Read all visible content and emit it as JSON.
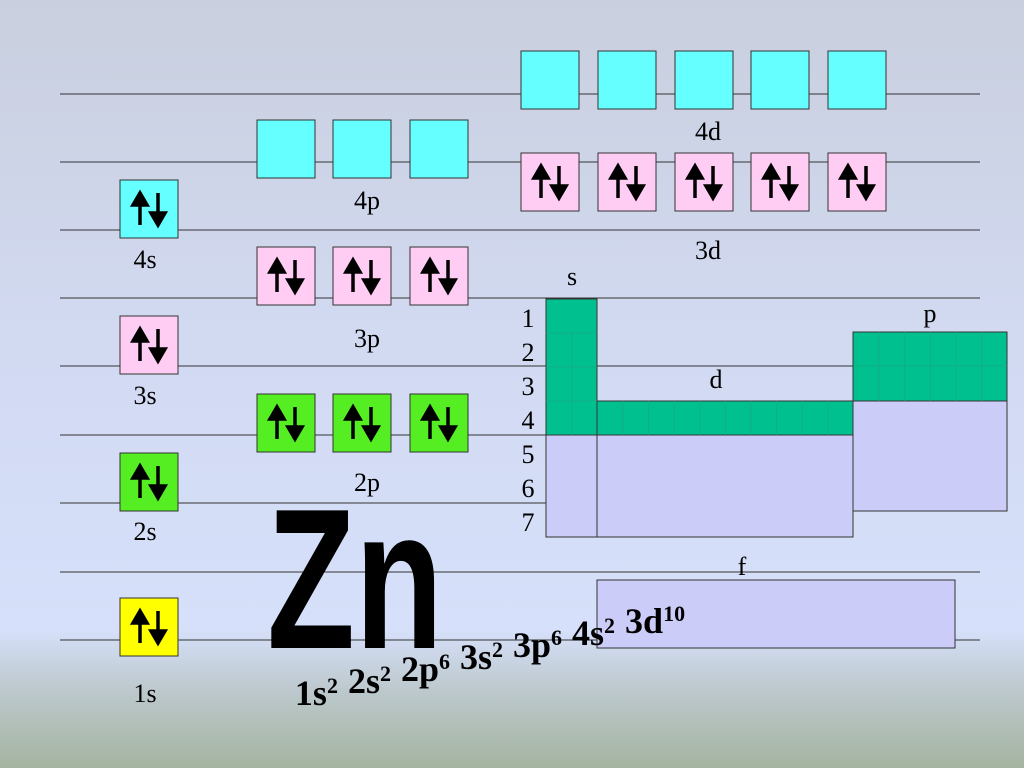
{
  "orbitals": [
    {
      "label": "1s"
    },
    {
      "label": "2s"
    },
    {
      "label": "2p"
    },
    {
      "label": "3s"
    },
    {
      "label": "3p"
    },
    {
      "label": "4s"
    },
    {
      "label": "3d"
    },
    {
      "label": "4p"
    },
    {
      "label": "4d"
    }
  ],
  "periodic_table": {
    "blocks": {
      "s": "s",
      "p": "p",
      "d": "d",
      "f": "f"
    },
    "periods": [
      "1",
      "2",
      "3",
      "4",
      "5",
      "6",
      "7"
    ]
  },
  "element": "Zn",
  "configuration": [
    {
      "base": "1s",
      "exp": "2"
    },
    {
      "base": "2s",
      "exp": "2"
    },
    {
      "base": "2p",
      "exp": "6"
    },
    {
      "base": "3s",
      "exp": "2"
    },
    {
      "base": "3p",
      "exp": "6"
    },
    {
      "base": "4s",
      "exp": "2"
    },
    {
      "base": "3d",
      "exp": "10"
    }
  ]
}
